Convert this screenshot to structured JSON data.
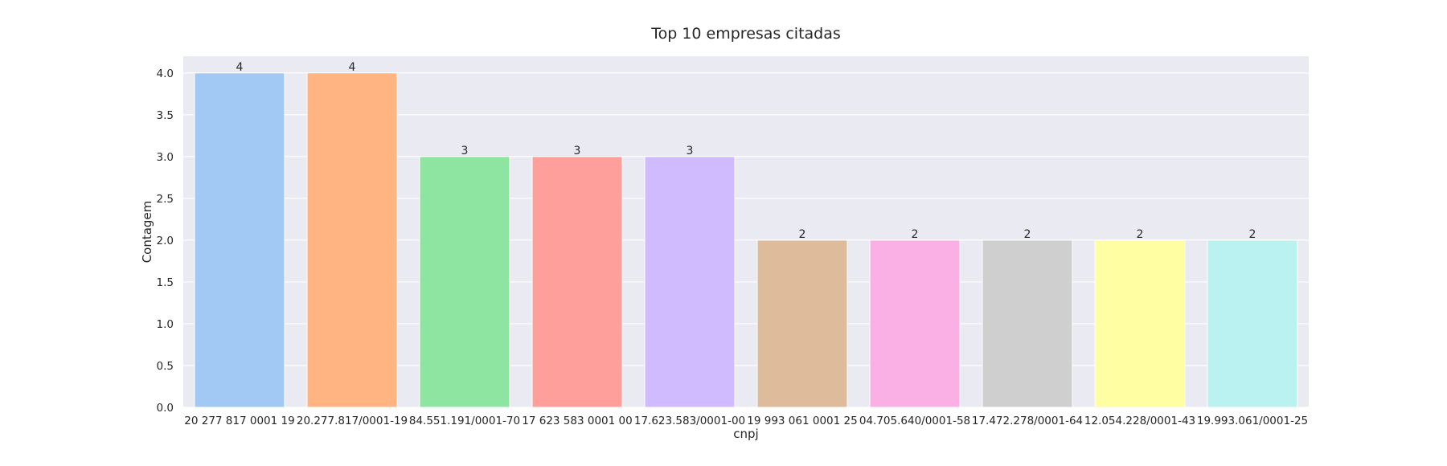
{
  "chart_data": {
    "type": "bar",
    "title": "Top 10 empresas citadas",
    "xlabel": "cnpj",
    "ylabel": "Contagem",
    "categories": [
      "20 277 817 0001 19",
      "20.277.817/0001-19",
      "84.551.191/0001-70",
      "17 623 583 0001 00",
      "17.623.583/0001-00",
      "19 993 061 0001 25",
      "04.705.640/0001-58",
      "17.472.278/0001-64",
      "12.054.228/0001-43",
      "19.993.061/0001-25"
    ],
    "values": [
      4,
      4,
      3,
      3,
      3,
      2,
      2,
      2,
      2,
      2
    ],
    "colors": [
      "#a1c9f4",
      "#ffb482",
      "#8de5a1",
      "#ff9f9b",
      "#d0bbff",
      "#debb9b",
      "#fab0e4",
      "#cfcfcf",
      "#fffea3",
      "#b9f2f0"
    ],
    "ylim": [
      0,
      4.2
    ],
    "yticks": [
      "0.0",
      "0.5",
      "1.0",
      "1.5",
      "2.0",
      "2.5",
      "3.0",
      "3.5",
      "4.0"
    ],
    "data_labels": [
      "4",
      "4",
      "3",
      "3",
      "3",
      "2",
      "2",
      "2",
      "2",
      "2"
    ],
    "grid": true,
    "background": "#eaeaf2",
    "gridcolor": "#ffffff"
  }
}
